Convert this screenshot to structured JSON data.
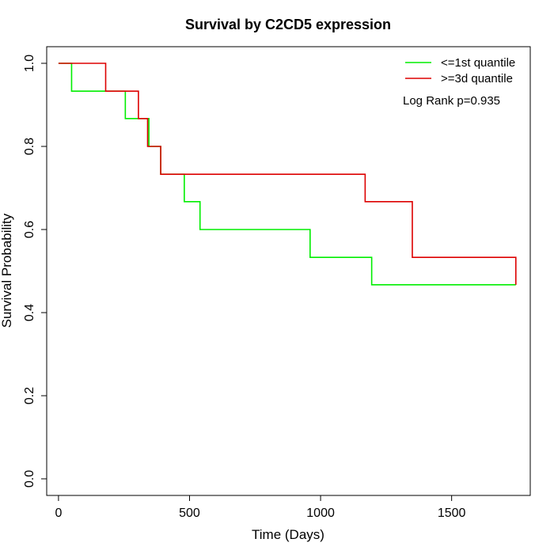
{
  "chart_data": {
    "type": "line",
    "title": "Survival by C2CD5 expression",
    "xlabel": "Time (Days)",
    "ylabel": "Survival Probability",
    "xlim": [
      -45,
      1800
    ],
    "ylim": [
      -0.04,
      1.04
    ],
    "x_ticks": [
      0,
      500,
      1000,
      1500
    ],
    "x_tick_labels": [
      "0",
      "500",
      "1000",
      "1500"
    ],
    "y_ticks": [
      0.0,
      0.2,
      0.4,
      0.6,
      0.8,
      1.0
    ],
    "y_tick_labels": [
      "0.0",
      "0.2",
      "0.4",
      "0.6",
      "0.8",
      "1.0"
    ],
    "grid": false,
    "legend_position": "top-right",
    "annotation": "Log Rank p=0.935",
    "series": [
      {
        "name": "<=1st quantile",
        "color": "#00ee00",
        "step_x": [
          0,
          50,
          255,
          345,
          390,
          480,
          540,
          960,
          1195,
          1350,
          1745
        ],
        "step_y": [
          1.0,
          0.933,
          0.867,
          0.8,
          0.733,
          0.667,
          0.6,
          0.533,
          0.467,
          0.467,
          0.467
        ]
      },
      {
        "name": ">=3d quantile",
        "color": "#dd0000",
        "step_x": [
          0,
          180,
          305,
          340,
          390,
          1170,
          1350,
          1745
        ],
        "step_y": [
          1.0,
          0.933,
          0.867,
          0.8,
          0.733,
          0.667,
          0.533,
          0.467
        ]
      }
    ]
  }
}
